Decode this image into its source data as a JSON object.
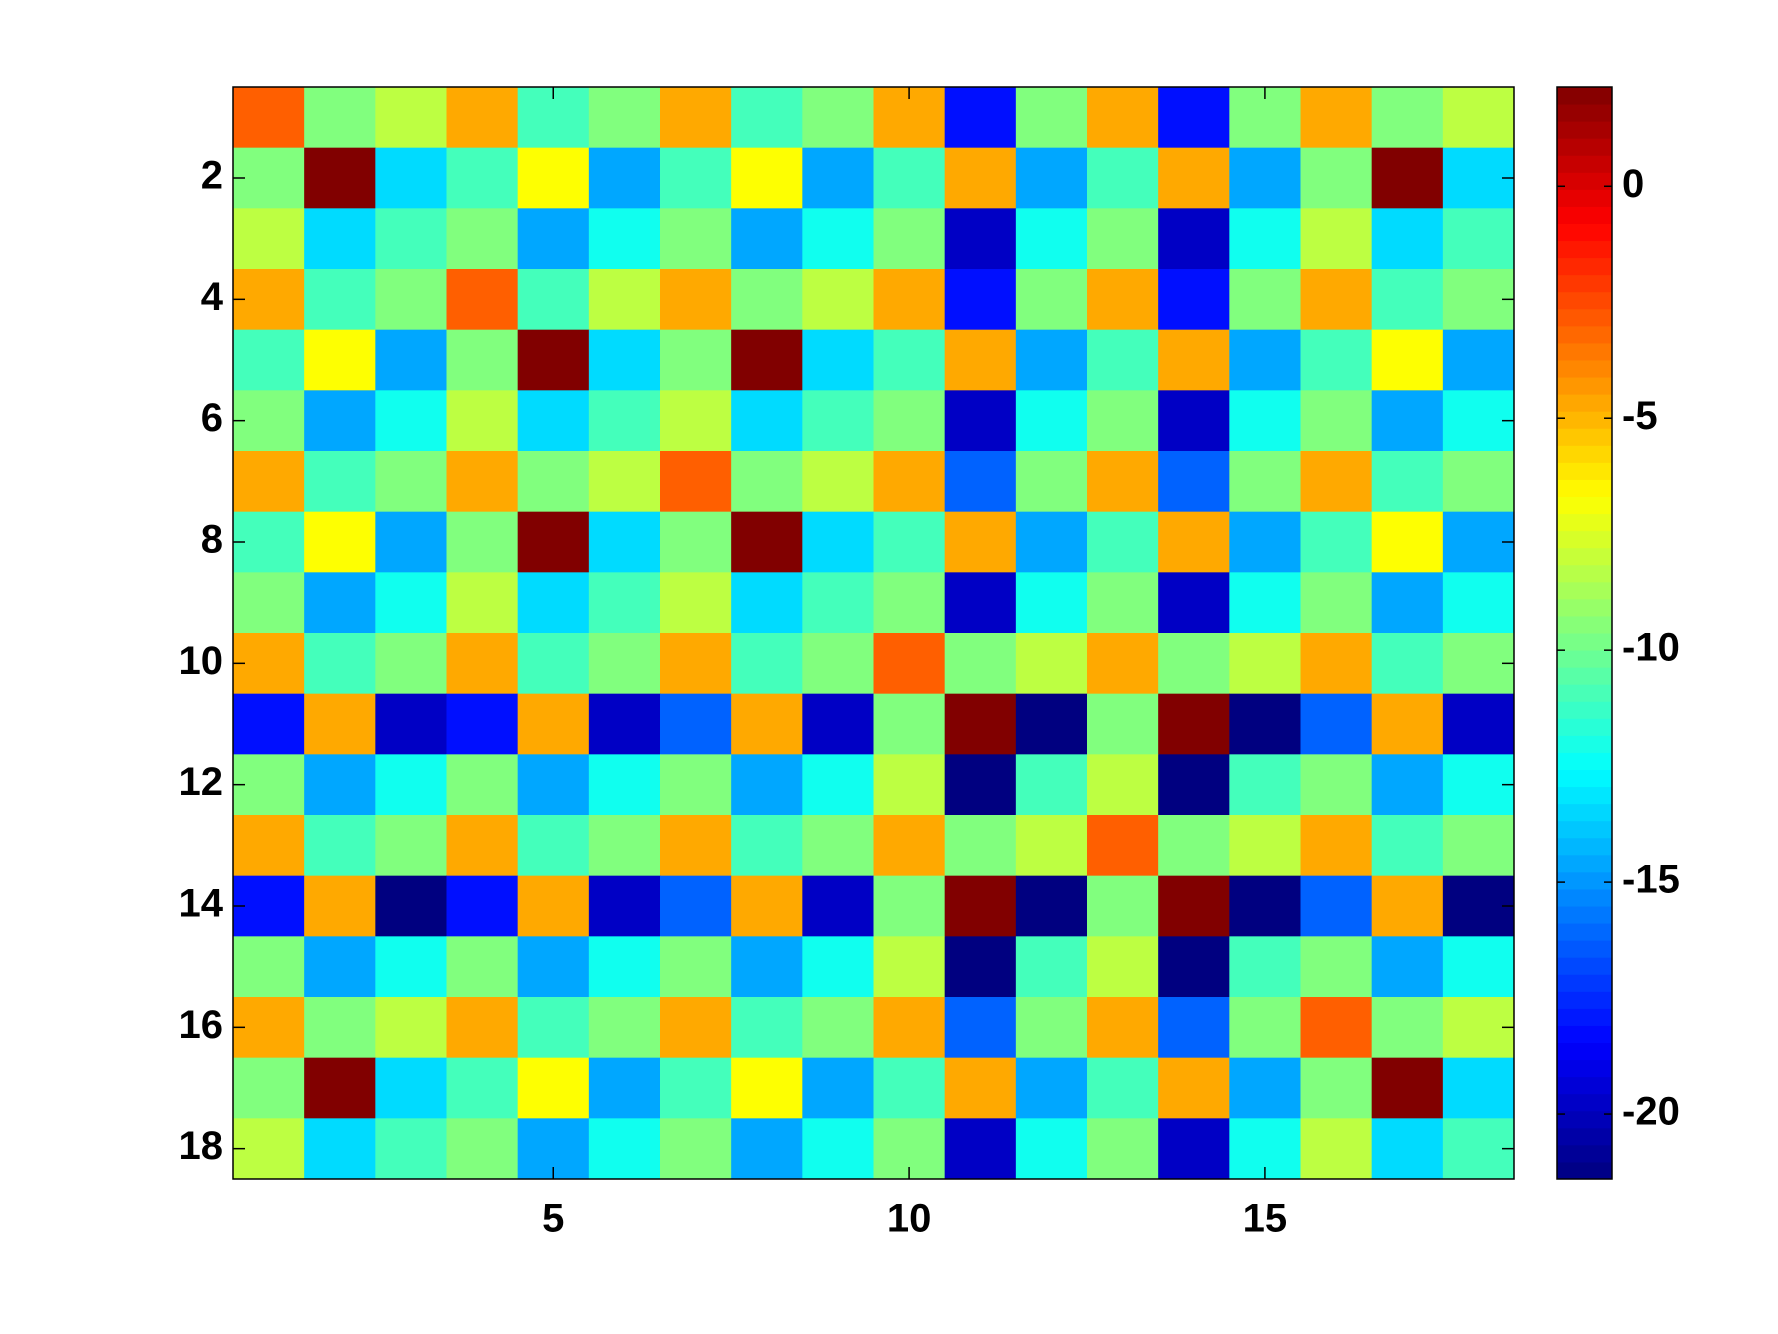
{
  "chart_data": {
    "type": "heatmap",
    "colormap": "jet",
    "xlim": [
      0.5,
      18.5
    ],
    "ylim": [
      0.5,
      18.5
    ],
    "xticks": [
      5,
      10,
      15
    ],
    "yticks": [
      2,
      4,
      6,
      8,
      10,
      12,
      14,
      16,
      18
    ],
    "clim": [
      -21.4,
      2.14
    ],
    "cticks": [
      -20,
      -15,
      -10,
      -5,
      0
    ],
    "z": [
      [
        -3,
        -9.6,
        -8.2,
        -4.7,
        -11,
        -9.6,
        -4.7,
        -11,
        -9.6,
        -4.7,
        -18.1,
        -9.6,
        -4.7,
        -18.1,
        -9.6,
        -4.7,
        -9.6,
        -8.2
      ],
      [
        -9.6,
        2.1,
        -13.4,
        -11,
        -6.7,
        -14.6,
        -11,
        -6.7,
        -14.6,
        -11,
        -4.7,
        -14.6,
        -11,
        -4.7,
        -14.6,
        -9.6,
        2.1,
        -13.4
      ],
      [
        -8.2,
        -13.4,
        -11,
        -9.6,
        -14.6,
        -12.2,
        -9.6,
        -14.6,
        -12.2,
        -9.6,
        -19.8,
        -12.2,
        -9.6,
        -19.8,
        -12.2,
        -8.2,
        -13.4,
        -11
      ],
      [
        -4.7,
        -11,
        -9.6,
        -3,
        -11,
        -8.2,
        -4.7,
        -9.6,
        -8.2,
        -4.7,
        -18.1,
        -9.6,
        -4.7,
        -18.1,
        -9.6,
        -4.7,
        -11,
        -9.6
      ],
      [
        -11,
        -6.7,
        -14.6,
        -9.6,
        2.1,
        -13.4,
        -9.6,
        2.1,
        -13.4,
        -11,
        -4.7,
        -14.6,
        -11,
        -4.7,
        -14.6,
        -11,
        -6.7,
        -14.6
      ],
      [
        -9.6,
        -14.6,
        -12.2,
        -8.2,
        -13.4,
        -11,
        -8.2,
        -13.4,
        -11,
        -9.6,
        -19.8,
        -12.2,
        -9.6,
        -19.8,
        -12.2,
        -9.6,
        -14.6,
        -12.2
      ],
      [
        -4.7,
        -11,
        -9.6,
        -4.7,
        -9.6,
        -8.2,
        -3,
        -9.6,
        -8.2,
        -4.7,
        -16.2,
        -9.6,
        -4.7,
        -16.2,
        -9.6,
        -4.7,
        -11,
        -9.6
      ],
      [
        -11,
        -6.7,
        -14.6,
        -9.6,
        2.1,
        -13.4,
        -9.6,
        2.1,
        -13.4,
        -11,
        -4.7,
        -14.6,
        -11,
        -4.7,
        -14.6,
        -11,
        -6.7,
        -14.6
      ],
      [
        -9.6,
        -14.6,
        -12.2,
        -8.2,
        -13.4,
        -11,
        -8.2,
        -13.4,
        -11,
        -9.6,
        -19.8,
        -12.2,
        -9.6,
        -19.8,
        -12.2,
        -9.6,
        -14.6,
        -12.2
      ],
      [
        -4.7,
        -11,
        -9.6,
        -4.7,
        -11,
        -9.6,
        -4.7,
        -11,
        -9.6,
        -3,
        -9.6,
        -8.2,
        -4.7,
        -9.6,
        -8.2,
        -4.7,
        -11,
        -9.6
      ],
      [
        -18.1,
        -4.7,
        -19.8,
        -18.1,
        -4.7,
        -19.8,
        -16.2,
        -4.7,
        -19.8,
        -9.6,
        2.1,
        -21.4,
        -9.6,
        2.1,
        -21.4,
        -16.2,
        -4.7,
        -19.8
      ],
      [
        -9.6,
        -14.6,
        -12.2,
        -9.6,
        -14.6,
        -12.2,
        -9.6,
        -14.6,
        -12.2,
        -8.2,
        -21.4,
        -11,
        -8.2,
        -21.4,
        -11,
        -9.6,
        -14.6,
        -12.2
      ],
      [
        -4.7,
        -11,
        -9.6,
        -4.7,
        -11,
        -9.6,
        -4.7,
        -11,
        -9.6,
        -4.7,
        -9.6,
        -8.2,
        -3,
        -9.6,
        -8.2,
        -4.7,
        -11,
        -9.6
      ],
      [
        -18.1,
        -4.7,
        -21.4,
        -18.1,
        -4.7,
        -19.8,
        -16.2,
        -4.7,
        -19.8,
        -9.6,
        2.1,
        -21.4,
        -9.6,
        2.1,
        -21.4,
        -16.2,
        -4.7,
        -21.4
      ],
      [
        -9.6,
        -14.6,
        -12.2,
        -9.6,
        -14.6,
        -12.2,
        -9.6,
        -14.6,
        -12.2,
        -8.2,
        -21.4,
        -11,
        -8.2,
        -21.4,
        -11,
        -9.6,
        -14.6,
        -12.2
      ],
      [
        -4.7,
        -9.6,
        -8.2,
        -4.7,
        -11,
        -9.6,
        -4.7,
        -11,
        -9.6,
        -4.7,
        -16.2,
        -9.6,
        -4.7,
        -16.2,
        -9.6,
        -3,
        -9.6,
        -8.2
      ],
      [
        -9.6,
        2.1,
        -13.4,
        -11,
        -6.7,
        -14.6,
        -11,
        -6.7,
        -14.6,
        -11,
        -4.7,
        -14.6,
        -11,
        -4.7,
        -14.6,
        -9.6,
        2.1,
        -13.4
      ],
      [
        -8.2,
        -13.4,
        -11,
        -9.6,
        -14.6,
        -12.2,
        -9.6,
        -14.6,
        -12.2,
        -9.6,
        -19.8,
        -12.2,
        -9.6,
        -19.8,
        -12.2,
        -8.2,
        -13.4,
        -11
      ]
    ]
  }
}
